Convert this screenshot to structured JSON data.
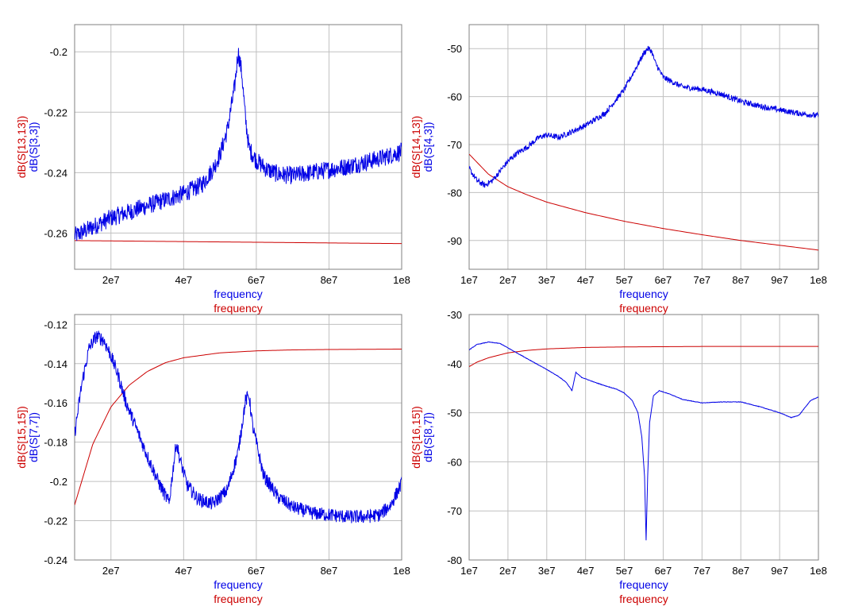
{
  "colors": {
    "blue": "#0000e6",
    "red": "#cc0000",
    "grid": "#c0c0c0",
    "frame": "#808080",
    "text": "#000000"
  },
  "chart_data": [
    {
      "type": "line",
      "xlabel": [
        "frequency",
        "frequency"
      ],
      "ylabel": [
        "dB(S[13,13])",
        "dB(S[3,3])"
      ],
      "xlim": [
        10000000,
        100000000
      ],
      "ylim": [
        -0.272,
        -0.191
      ],
      "x_ticks": [
        {
          "v": 20000000,
          "label": "2e7"
        },
        {
          "v": 40000000,
          "label": "4e7"
        },
        {
          "v": 60000000,
          "label": "6e7"
        },
        {
          "v": 80000000,
          "label": "8e7"
        },
        {
          "v": 100000000,
          "label": "1e8"
        }
      ],
      "y_ticks": [
        {
          "v": -0.26,
          "label": "-0.26"
        },
        {
          "v": -0.24,
          "label": "-0.24"
        },
        {
          "v": -0.22,
          "label": "-0.22"
        },
        {
          "v": -0.2,
          "label": "-0.2"
        }
      ],
      "series": [
        {
          "color": "blue",
          "noise": 0.003,
          "x": [
            10000000,
            15000000,
            20000000,
            25000000,
            30000000,
            35000000,
            40000000,
            45000000,
            48000000,
            50000000,
            52000000,
            54000000,
            55000000,
            56000000,
            57000000,
            58000000,
            60000000,
            63000000,
            66000000,
            70000000,
            75000000,
            80000000,
            85000000,
            90000000,
            95000000,
            100000000
          ],
          "y": [
            -0.261,
            -0.258,
            -0.255,
            -0.253,
            -0.251,
            -0.249,
            -0.247,
            -0.244,
            -0.239,
            -0.234,
            -0.226,
            -0.212,
            -0.2,
            -0.207,
            -0.222,
            -0.232,
            -0.236,
            -0.239,
            -0.2405,
            -0.241,
            -0.24,
            -0.239,
            -0.238,
            -0.2365,
            -0.235,
            -0.233
          ]
        },
        {
          "color": "red",
          "noise": 0,
          "x": [
            10000000,
            100000000
          ],
          "y": [
            -0.2625,
            -0.2635
          ]
        }
      ]
    },
    {
      "type": "line",
      "xlabel": [
        "frequency",
        "frequency"
      ],
      "ylabel": [
        "dB(S[14,13])",
        "dB(S[4,3])"
      ],
      "xlim": [
        10000000,
        100000000
      ],
      "ylim": [
        -96,
        -45
      ],
      "x_ticks": [
        {
          "v": 10000000,
          "label": "1e7"
        },
        {
          "v": 20000000,
          "label": "2e7"
        },
        {
          "v": 30000000,
          "label": "3e7"
        },
        {
          "v": 40000000,
          "label": "4e7"
        },
        {
          "v": 50000000,
          "label": "5e7"
        },
        {
          "v": 60000000,
          "label": "6e7"
        },
        {
          "v": 70000000,
          "label": "7e7"
        },
        {
          "v": 80000000,
          "label": "8e7"
        },
        {
          "v": 90000000,
          "label": "9e7"
        },
        {
          "v": 100000000,
          "label": "1e8"
        }
      ],
      "y_ticks": [
        {
          "v": -90,
          "label": "-90"
        },
        {
          "v": -80,
          "label": "-80"
        },
        {
          "v": -70,
          "label": "-70"
        },
        {
          "v": -60,
          "label": "-60"
        },
        {
          "v": -50,
          "label": "-50"
        }
      ],
      "series": [
        {
          "color": "blue",
          "noise": 0.6,
          "x": [
            10000000,
            12000000,
            14000000,
            16000000,
            18000000,
            20000000,
            22000000,
            25000000,
            28000000,
            30000000,
            33000000,
            36000000,
            40000000,
            45000000,
            50000000,
            53000000,
            55000000,
            56000000,
            57000000,
            58000000,
            60000000,
            65000000,
            70000000,
            75000000,
            80000000,
            85000000,
            90000000,
            95000000,
            100000000
          ],
          "y": [
            -75,
            -77.5,
            -78.5,
            -77.5,
            -75.5,
            -73.5,
            -72,
            -70.5,
            -68.5,
            -68,
            -68.5,
            -67.5,
            -66,
            -63.5,
            -58.5,
            -54,
            -51,
            -50,
            -50.5,
            -53,
            -56,
            -58,
            -58.5,
            -59.5,
            -61,
            -62,
            -62.8,
            -63.5,
            -64
          ]
        },
        {
          "color": "red",
          "noise": 0,
          "x": [
            10000000,
            15000000,
            20000000,
            25000000,
            30000000,
            40000000,
            50000000,
            60000000,
            70000000,
            80000000,
            90000000,
            100000000
          ],
          "y": [
            -72,
            -76.2,
            -78.8,
            -80.5,
            -82,
            -84.2,
            -86,
            -87.5,
            -88.8,
            -90,
            -91,
            -92
          ]
        }
      ]
    },
    {
      "type": "line",
      "xlabel": [
        "frequency",
        "frequency"
      ],
      "ylabel": [
        "dB(S[15,15])",
        "dB(S[7,7])"
      ],
      "xlim": [
        10000000,
        100000000
      ],
      "ylim": [
        -0.24,
        -0.115
      ],
      "x_ticks": [
        {
          "v": 20000000,
          "label": "2e7"
        },
        {
          "v": 40000000,
          "label": "4e7"
        },
        {
          "v": 60000000,
          "label": "6e7"
        },
        {
          "v": 80000000,
          "label": "8e7"
        },
        {
          "v": 100000000,
          "label": "1e8"
        }
      ],
      "y_ticks": [
        {
          "v": -0.24,
          "label": "-0.24"
        },
        {
          "v": -0.22,
          "label": "-0.22"
        },
        {
          "v": -0.2,
          "label": "-0.2"
        },
        {
          "v": -0.18,
          "label": "-0.18"
        },
        {
          "v": -0.16,
          "label": "-0.16"
        },
        {
          "v": -0.14,
          "label": "-0.14"
        },
        {
          "v": -0.12,
          "label": "-0.12"
        }
      ],
      "series": [
        {
          "color": "blue",
          "noise": 0.0035,
          "x": [
            10000000,
            12000000,
            14000000,
            16000000,
            18000000,
            20000000,
            22000000,
            24000000,
            27000000,
            30000000,
            33000000,
            36000000,
            37000000,
            38000000,
            39000000,
            41000000,
            44000000,
            48000000,
            52000000,
            55000000,
            57000000,
            58000000,
            59000000,
            62000000,
            66000000,
            70000000,
            75000000,
            80000000,
            85000000,
            90000000,
            94000000,
            97000000,
            100000000
          ],
          "y": [
            -0.176,
            -0.15,
            -0.132,
            -0.126,
            -0.128,
            -0.136,
            -0.146,
            -0.159,
            -0.173,
            -0.187,
            -0.2,
            -0.211,
            -0.195,
            -0.18,
            -0.189,
            -0.202,
            -0.209,
            -0.2115,
            -0.2045,
            -0.185,
            -0.159,
            -0.156,
            -0.172,
            -0.197,
            -0.208,
            -0.213,
            -0.216,
            -0.217,
            -0.218,
            -0.218,
            -0.217,
            -0.212,
            -0.201
          ]
        },
        {
          "color": "red",
          "noise": 0,
          "x": [
            10000000,
            15000000,
            20000000,
            25000000,
            30000000,
            35000000,
            40000000,
            50000000,
            60000000,
            70000000,
            80000000,
            90000000,
            100000000
          ],
          "y": [
            -0.212,
            -0.181,
            -0.162,
            -0.151,
            -0.144,
            -0.1395,
            -0.137,
            -0.1345,
            -0.1335,
            -0.133,
            -0.1328,
            -0.1327,
            -0.1326
          ]
        }
      ]
    },
    {
      "type": "line",
      "xlabel": [
        "frequency",
        "frequency"
      ],
      "ylabel": [
        "dB(S[16,15])",
        "dB(S[8,7])"
      ],
      "xlim": [
        10000000,
        100000000
      ],
      "ylim": [
        -80,
        -30
      ],
      "x_ticks": [
        {
          "v": 10000000,
          "label": "1e7"
        },
        {
          "v": 20000000,
          "label": "2e7"
        },
        {
          "v": 30000000,
          "label": "3e7"
        },
        {
          "v": 40000000,
          "label": "4e7"
        },
        {
          "v": 50000000,
          "label": "5e7"
        },
        {
          "v": 60000000,
          "label": "6e7"
        },
        {
          "v": 70000000,
          "label": "7e7"
        },
        {
          "v": 80000000,
          "label": "8e7"
        },
        {
          "v": 90000000,
          "label": "9e7"
        },
        {
          "v": 100000000,
          "label": "1e8"
        }
      ],
      "y_ticks": [
        {
          "v": -80,
          "label": "-80"
        },
        {
          "v": -70,
          "label": "-70"
        },
        {
          "v": -60,
          "label": "-60"
        },
        {
          "v": -50,
          "label": "-50"
        },
        {
          "v": -40,
          "label": "-40"
        },
        {
          "v": -30,
          "label": "-30"
        }
      ],
      "series": [
        {
          "color": "blue",
          "noise": 0.05,
          "x": [
            10000000,
            12000000,
            15000000,
            18000000,
            20000000,
            25000000,
            30000000,
            33000000,
            35000000,
            36500000,
            37500000,
            39000000,
            42000000,
            45000000,
            48000000,
            50000000,
            52000000,
            53500000,
            54500000,
            55200000,
            55600000,
            56000000,
            56500000,
            57500000,
            59000000,
            62000000,
            65000000,
            70000000,
            75000000,
            80000000,
            85000000,
            90000000,
            93000000,
            95000000,
            98000000,
            100000000
          ],
          "y": [
            -37.2,
            -36.1,
            -35.6,
            -35.9,
            -36.8,
            -39,
            -41.2,
            -42.6,
            -43.8,
            -45.5,
            -41.8,
            -42.8,
            -43.7,
            -44.5,
            -45.2,
            -46,
            -47.5,
            -50,
            -55,
            -63,
            -76,
            -63,
            -52,
            -46.5,
            -45.5,
            -46.3,
            -47.3,
            -48,
            -47.8,
            -47.8,
            -48.8,
            -50,
            -51,
            -50.5,
            -47.5,
            -46.8
          ]
        },
        {
          "color": "red",
          "noise": 0,
          "x": [
            10000000,
            12000000,
            15000000,
            20000000,
            25000000,
            30000000,
            40000000,
            50000000,
            60000000,
            70000000,
            80000000,
            90000000,
            100000000
          ],
          "y": [
            -40.6,
            -39.7,
            -38.8,
            -37.8,
            -37.3,
            -37,
            -36.7,
            -36.6,
            -36.55,
            -36.5,
            -36.5,
            -36.5,
            -36.5
          ]
        }
      ]
    }
  ]
}
